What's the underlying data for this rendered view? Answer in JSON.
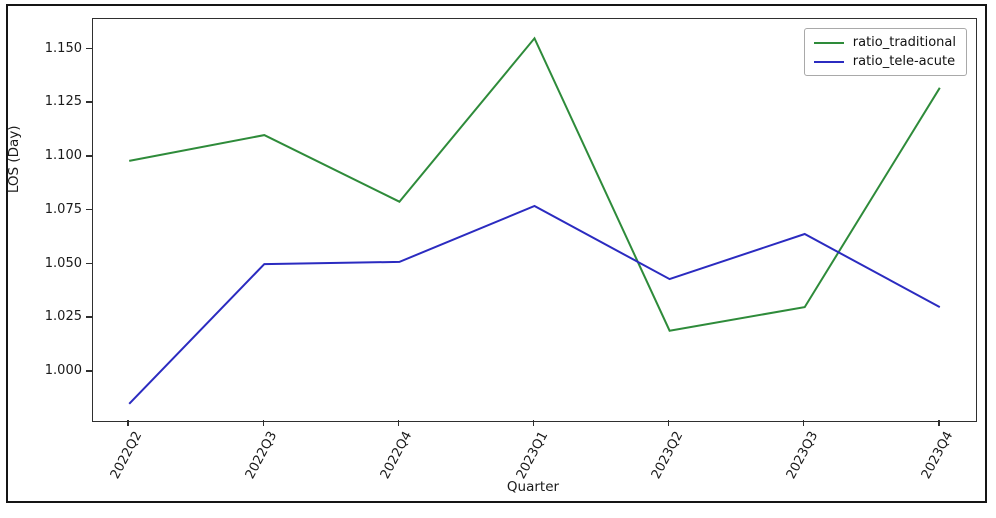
{
  "figure": {
    "background": "#ffffff",
    "frame_border_color": "#151515",
    "spine_color": "#2f2f2f",
    "text_color": "#1a1a1a"
  },
  "chart_data": {
    "type": "line",
    "title": "",
    "xlabel": "Quarter",
    "ylabel": "LOS (Day)",
    "categories": [
      "2022Q2",
      "2022Q3",
      "2022Q4",
      "2023Q1",
      "2023Q2",
      "2023Q3",
      "2023Q4"
    ],
    "series": [
      {
        "name": "ratio_traditional",
        "color": "#2e8b3a",
        "values": [
          1.098,
          1.11,
          1.079,
          1.155,
          1.019,
          1.03,
          1.132
        ]
      },
      {
        "name": "ratio_tele-acute",
        "color": "#2b2bc0",
        "values": [
          0.985,
          1.05,
          1.051,
          1.077,
          1.043,
          1.064,
          1.03
        ]
      }
    ],
    "y_tick_labels": [
      "1.000",
      "1.025",
      "1.050",
      "1.075",
      "1.100",
      "1.125",
      "1.150"
    ],
    "y_tick_values": [
      1.0,
      1.025,
      1.05,
      1.075,
      1.1,
      1.125,
      1.15
    ],
    "ylim": [
      0.977,
      1.164
    ],
    "x_edge_margin_frac": 0.041,
    "grid": false,
    "legend_position": "upper right",
    "line_width": 2
  }
}
